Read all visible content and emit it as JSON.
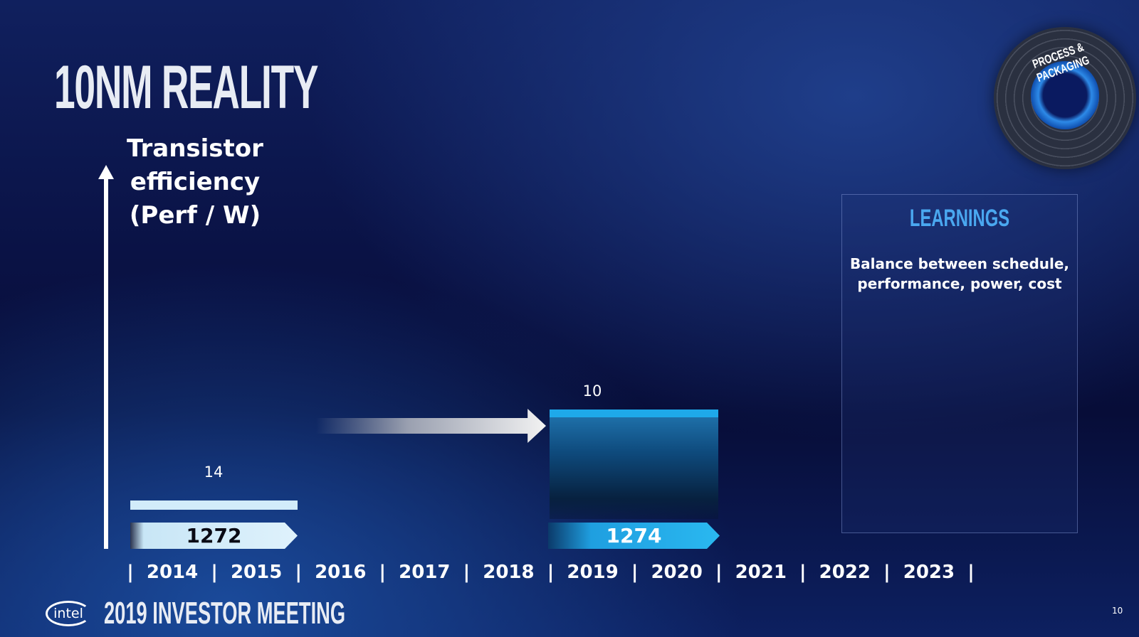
{
  "slide": {
    "title": "10NM REALITY",
    "badge": "PROCESS & PACKAGING",
    "footer_brand": "intel",
    "footer_event": "2019 INVESTOR MEETING",
    "page_number": "10"
  },
  "learnings": {
    "title": "LEARNINGS",
    "text": "Balance between schedule, performance, power, cost"
  },
  "colors": {
    "node14": "#d2ecfa",
    "node10": "#1ea9ea",
    "accent": "#4aa8f0"
  },
  "chart_data": {
    "type": "bar",
    "ylabel_line1": "Transistor efficiency",
    "ylabel_line2": "(Perf / W)",
    "categories": [
      "2014",
      "2015",
      "2016",
      "2017",
      "2018",
      "2019",
      "2020",
      "2021",
      "2022",
      "2023"
    ],
    "series": [
      {
        "node": "14",
        "process": "1272",
        "start": "2014",
        "end": "2015"
      },
      {
        "node": "10",
        "process": "1274",
        "start": "2019",
        "end": "2020"
      }
    ]
  }
}
